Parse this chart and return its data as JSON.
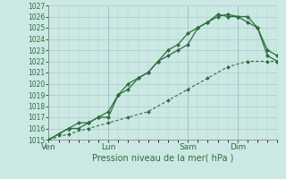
{
  "background_color": "#cce8e4",
  "grid_color": "#aaccca",
  "line_color": "#2d6e3e",
  "xlabel": "Pression niveau de la mer( hPa )",
  "ylim": [
    1015,
    1027
  ],
  "yticks": [
    1015,
    1016,
    1017,
    1018,
    1019,
    1020,
    1021,
    1022,
    1023,
    1024,
    1025,
    1026
  ],
  "xtick_labels": [
    "Ven",
    "Lun",
    "Sam",
    "Dim"
  ],
  "xtick_positions": [
    0,
    6,
    14,
    19
  ],
  "total_points": 24,
  "series1_x": [
    0,
    1,
    2,
    3,
    4,
    5,
    6,
    7,
    8,
    9,
    10,
    11,
    12,
    13,
    14,
    15,
    16,
    17,
    18,
    19,
    20,
    21,
    22,
    23
  ],
  "series1_y": [
    1015,
    1015.5,
    1016,
    1016.5,
    1016.5,
    1017,
    1017.5,
    1019,
    1019.5,
    1020.5,
    1021,
    1022,
    1022.5,
    1023,
    1023.5,
    1025,
    1025.5,
    1026.2,
    1026,
    1026,
    1025.5,
    1025,
    1023,
    1022.5
  ],
  "series2_x": [
    0,
    1,
    2,
    3,
    4,
    5,
    6,
    7,
    8,
    9,
    10,
    11,
    12,
    13,
    14,
    15,
    16,
    17,
    18,
    19,
    20,
    21,
    22,
    23
  ],
  "series2_y": [
    1015,
    1015.5,
    1016,
    1016,
    1016.5,
    1017,
    1017,
    1019,
    1020,
    1020.5,
    1021,
    1022,
    1023,
    1023.5,
    1024.5,
    1025,
    1025.5,
    1026,
    1026.2,
    1026,
    1026,
    1025,
    1022.5,
    1022
  ],
  "series3_x": [
    0,
    2,
    4,
    6,
    8,
    10,
    12,
    14,
    16,
    18,
    20,
    22,
    23
  ],
  "series3_y": [
    1015,
    1015.5,
    1016,
    1016.5,
    1017,
    1017.5,
    1018.5,
    1019.5,
    1020.5,
    1021.5,
    1022,
    1022,
    1022
  ],
  "vline_color": "#88b8b4",
  "xlabel_fontsize": 7,
  "ytick_fontsize": 5.5,
  "xtick_fontsize": 6.5
}
